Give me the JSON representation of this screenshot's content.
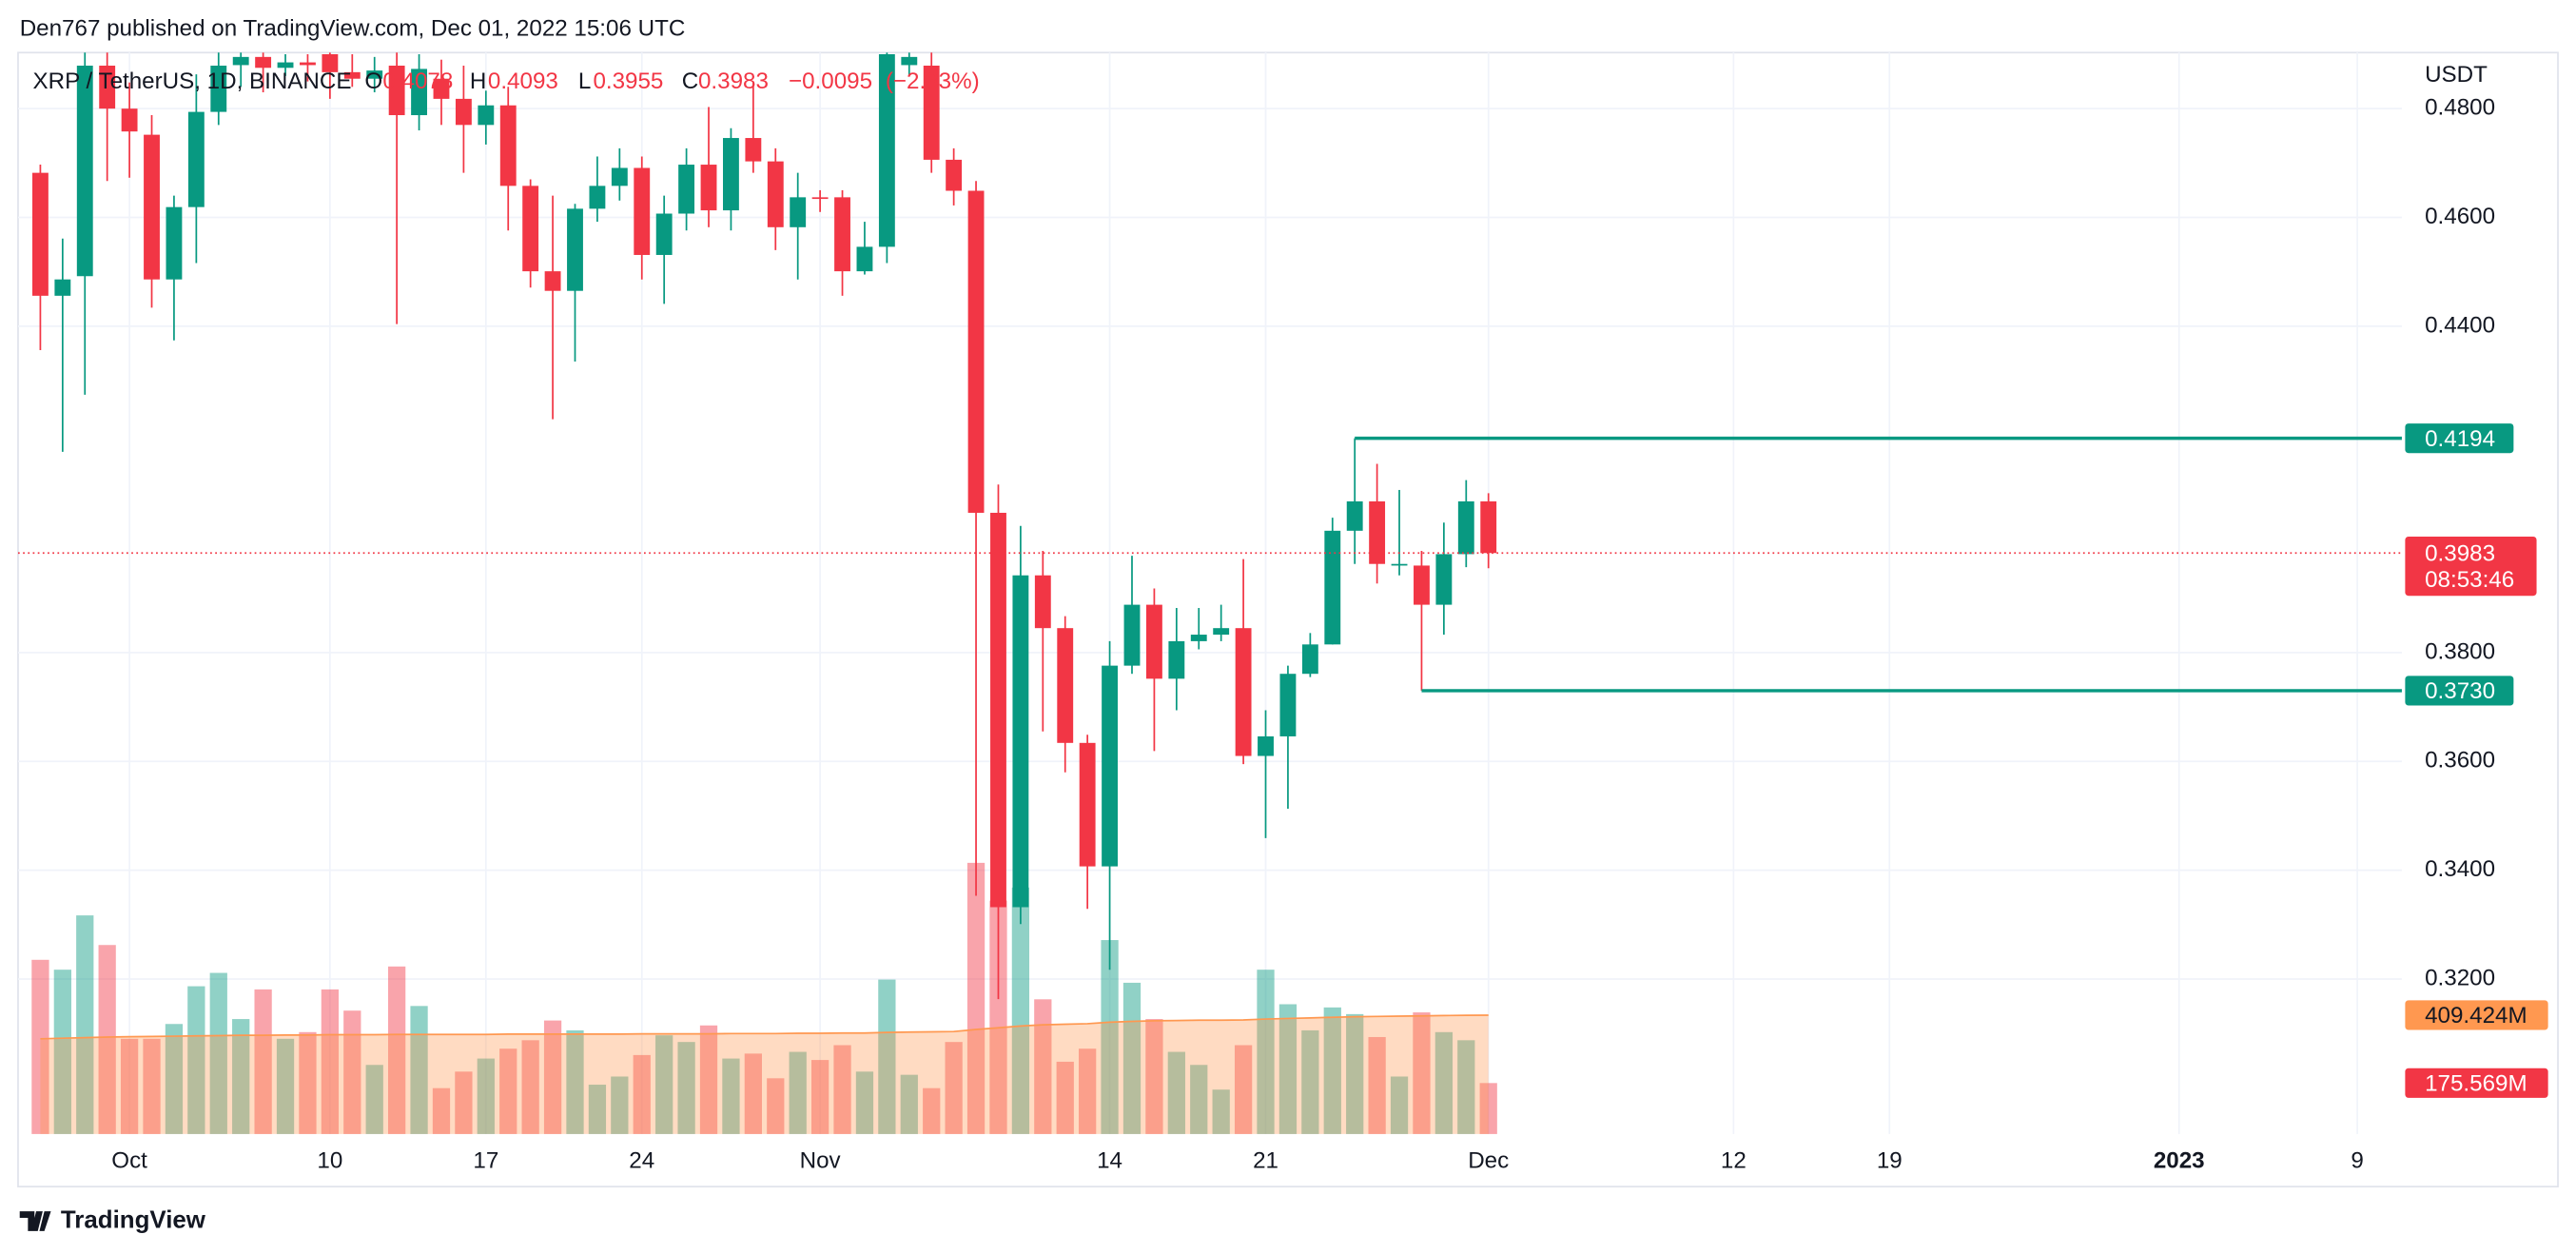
{
  "header": {
    "publisher": "Den767 published on TradingView.com, Dec 01, 2022 15:06 UTC"
  },
  "chart_data": {
    "type": "candlestick",
    "symbol": "XRP / TetherUS, 1D, BINANCE",
    "legend": {
      "labels": [
        "O",
        "H",
        "L",
        "C"
      ],
      "values": [
        0.4078,
        0.4093,
        0.3955,
        0.3983
      ],
      "change": {
        "value": -0.0095,
        "label": "−0.0095"
      },
      "change_pct": {
        "value": -2.33,
        "label": "(−2.33%)"
      }
    },
    "currency": "USDT",
    "x": [
      "2022-09-27",
      "2022-09-28",
      "2022-09-29",
      "2022-09-30",
      "2022-10-01",
      "2022-10-02",
      "2022-10-03",
      "2022-10-04",
      "2022-10-05",
      "2022-10-06",
      "2022-10-07",
      "2022-10-08",
      "2022-10-09",
      "2022-10-10",
      "2022-10-11",
      "2022-10-12",
      "2022-10-13",
      "2022-10-14",
      "2022-10-15",
      "2022-10-16",
      "2022-10-17",
      "2022-10-18",
      "2022-10-19",
      "2022-10-20",
      "2022-10-21",
      "2022-10-22",
      "2022-10-23",
      "2022-10-24",
      "2022-10-25",
      "2022-10-26",
      "2022-10-27",
      "2022-10-28",
      "2022-10-29",
      "2022-10-30",
      "2022-10-31",
      "2022-11-01",
      "2022-11-02",
      "2022-11-03",
      "2022-11-04",
      "2022-11-05",
      "2022-11-06",
      "2022-11-07",
      "2022-11-08",
      "2022-11-09",
      "2022-11-10",
      "2022-11-11",
      "2022-11-12",
      "2022-11-13",
      "2022-11-14",
      "2022-11-15",
      "2022-11-16",
      "2022-11-17",
      "2022-11-18",
      "2022-11-19",
      "2022-11-20",
      "2022-11-21",
      "2022-11-22",
      "2022-11-23",
      "2022-11-24",
      "2022-11-25",
      "2022-11-26",
      "2022-11-27",
      "2022-11-28",
      "2022-11-29",
      "2022-11-30",
      "2022-12-01"
    ],
    "open": [
      0.4682,
      0.4456,
      0.4492,
      0.4879,
      0.48,
      0.4752,
      0.4486,
      0.4619,
      0.4794,
      0.488,
      0.4895,
      0.4875,
      0.4885,
      0.49,
      0.4867,
      0.4855,
      0.4879,
      0.4788,
      0.4855,
      0.4818,
      0.477,
      0.4806,
      0.4658,
      0.4501,
      0.4465,
      0.4616,
      0.4658,
      0.4691,
      0.4531,
      0.4607,
      0.4697,
      0.4613,
      0.4746,
      0.4703,
      0.4582,
      0.4637,
      0.4637,
      0.4501,
      0.4546,
      0.488,
      0.4879,
      0.4706,
      0.4649,
      0.4057,
      0.3332,
      0.3942,
      0.3845,
      0.3634,
      0.3407,
      0.3776,
      0.3888,
      0.3752,
      0.3821,
      0.3833,
      0.3845,
      0.361,
      0.3646,
      0.3761,
      0.3815,
      0.4024,
      0.4078,
      0.396,
      0.396,
      0.3888,
      0.3981,
      0.4078
    ],
    "high": [
      0.4697,
      0.4561,
      0.4903,
      0.4903,
      0.4848,
      0.4788,
      0.464,
      0.4863,
      0.4903,
      0.4903,
      0.4903,
      0.49,
      0.49,
      0.4903,
      0.49,
      0.4895,
      0.4903,
      0.49,
      0.489,
      0.4879,
      0.4833,
      0.484,
      0.467,
      0.464,
      0.4625,
      0.4712,
      0.4727,
      0.4712,
      0.464,
      0.4727,
      0.4803,
      0.4764,
      0.4848,
      0.4727,
      0.4682,
      0.465,
      0.465,
      0.4592,
      0.4903,
      0.4903,
      0.4903,
      0.4727,
      0.4667,
      0.4109,
      0.4033,
      0.3987,
      0.3867,
      0.3649,
      0.3821,
      0.3978,
      0.3918,
      0.3882,
      0.3882,
      0.3888,
      0.3972,
      0.3694,
      0.3776,
      0.3836,
      0.4048,
      0.4194,
      0.4147,
      0.4099,
      0.3987,
      0.4039,
      0.4117,
      0.4093
    ],
    "low": [
      0.4356,
      0.4169,
      0.4274,
      0.4667,
      0.4673,
      0.4434,
      0.4374,
      0.4516,
      0.477,
      0.484,
      0.483,
      0.486,
      0.485,
      0.4818,
      0.484,
      0.483,
      0.4404,
      0.476,
      0.477,
      0.4682,
      0.4734,
      0.4576,
      0.4471,
      0.4229,
      0.4335,
      0.4592,
      0.4631,
      0.4486,
      0.4441,
      0.4576,
      0.4582,
      0.4576,
      0.4682,
      0.454,
      0.4486,
      0.461,
      0.4456,
      0.4495,
      0.4516,
      0.486,
      0.4682,
      0.4622,
      0.3353,
      0.3163,
      0.3301,
      0.3655,
      0.358,
      0.3329,
      0.3217,
      0.3761,
      0.3619,
      0.3694,
      0.3806,
      0.3821,
      0.3595,
      0.3459,
      0.3513,
      0.3755,
      0.3815,
      0.3963,
      0.3927,
      0.3942,
      0.373,
      0.3833,
      0.3957,
      0.3955
    ],
    "close": [
      0.4456,
      0.4486,
      0.4879,
      0.48,
      0.4758,
      0.4486,
      0.4619,
      0.4794,
      0.4879,
      0.4895,
      0.4875,
      0.4885,
      0.488,
      0.4867,
      0.4855,
      0.487,
      0.4788,
      0.4873,
      0.4818,
      0.477,
      0.4806,
      0.4658,
      0.4501,
      0.4465,
      0.4616,
      0.4658,
      0.4691,
      0.4531,
      0.4607,
      0.4697,
      0.4613,
      0.4746,
      0.4703,
      0.4582,
      0.4637,
      0.4634,
      0.4501,
      0.4546,
      0.49,
      0.4895,
      0.4706,
      0.4649,
      0.4057,
      0.3332,
      0.3942,
      0.3845,
      0.3634,
      0.3407,
      0.3776,
      0.3888,
      0.3752,
      0.3821,
      0.3833,
      0.3845,
      0.361,
      0.3646,
      0.3761,
      0.3815,
      0.4024,
      0.4078,
      0.3963,
      0.3963,
      0.3888,
      0.3981,
      0.4078,
      0.3983
    ],
    "up_color": "#089981",
    "down_color": "#f23645",
    "volume": {
      "values": [
        600,
        566,
        753,
        651,
        328,
        328,
        379,
        509,
        555,
        396,
        498,
        328,
        351,
        498,
        425,
        238,
        577,
        441,
        158,
        215,
        260,
        294,
        323,
        391,
        357,
        170,
        198,
        272,
        340,
        317,
        374,
        260,
        277,
        192,
        283,
        255,
        306,
        215,
        532,
        204,
        158,
        317,
        934,
        804,
        849,
        464,
        249,
        294,
        668,
        521,
        396,
        283,
        238,
        153,
        306,
        566,
        447,
        357,
        436,
        413,
        334,
        198,
        419,
        351,
        323,
        175.569
      ],
      "up_color": "rgba(8,153,129,0.45)",
      "down_color": "rgba(242,54,69,0.45)",
      "last_label": "175.569M"
    },
    "volume_ma": {
      "values": [
        328,
        330,
        332,
        334,
        335,
        336,
        337,
        338,
        339,
        340,
        340,
        341,
        341,
        342,
        342,
        342,
        343,
        343,
        343,
        343,
        343,
        344,
        344,
        344,
        344,
        344,
        344,
        345,
        345,
        345,
        345,
        346,
        346,
        346,
        347,
        347,
        348,
        348,
        350,
        351,
        352,
        353,
        360,
        366,
        372,
        376,
        378,
        380,
        385,
        388,
        390,
        391,
        392,
        392,
        393,
        396,
        398,
        400,
        402,
        404,
        405,
        406,
        407,
        408,
        409,
        409.424
      ],
      "color": "#ff9850",
      "last_label": "409.424M"
    },
    "ylim": [
      0.2915,
      0.4903
    ],
    "yticks": [
      {
        "value": 0.48,
        "label": "0.4800"
      },
      {
        "value": 0.46,
        "label": "0.4600"
      },
      {
        "value": 0.44,
        "label": "0.4400"
      },
      {
        "value": 0.38,
        "label": "0.3800"
      },
      {
        "value": 0.36,
        "label": "0.3600"
      },
      {
        "value": 0.34,
        "label": "0.3400"
      },
      {
        "value": 0.32,
        "label": "0.3200"
      }
    ],
    "xlim": [
      "2022-09-26",
      "2023-01-11"
    ],
    "xticks": [
      {
        "value": "2022-10-01",
        "label": "Oct"
      },
      {
        "value": "2022-10-10",
        "label": "10"
      },
      {
        "value": "2022-10-17",
        "label": "17"
      },
      {
        "value": "2022-10-24",
        "label": "24"
      },
      {
        "value": "2022-11-01",
        "label": "Nov"
      },
      {
        "value": "2022-11-14",
        "label": "14"
      },
      {
        "value": "2022-11-21",
        "label": "21"
      },
      {
        "value": "2022-12-01",
        "label": "Dec"
      },
      {
        "value": "2022-12-12",
        "label": "12"
      },
      {
        "value": "2022-12-19",
        "label": "19"
      },
      {
        "value": "2023-01-01",
        "label": "2023"
      },
      {
        "value": "2023-01-09",
        "label": "9"
      }
    ],
    "last_price": {
      "value": 0.3983,
      "countdown": "08:53:46"
    },
    "levels": [
      {
        "start": "2022-11-25",
        "value": 0.4194
      },
      {
        "start": "2022-11-28",
        "value": 0.373,
        "label": "0.3730"
      }
    ],
    "level_color": "#089981",
    "grid": true
  },
  "footer": {
    "brand": "TradingView"
  }
}
